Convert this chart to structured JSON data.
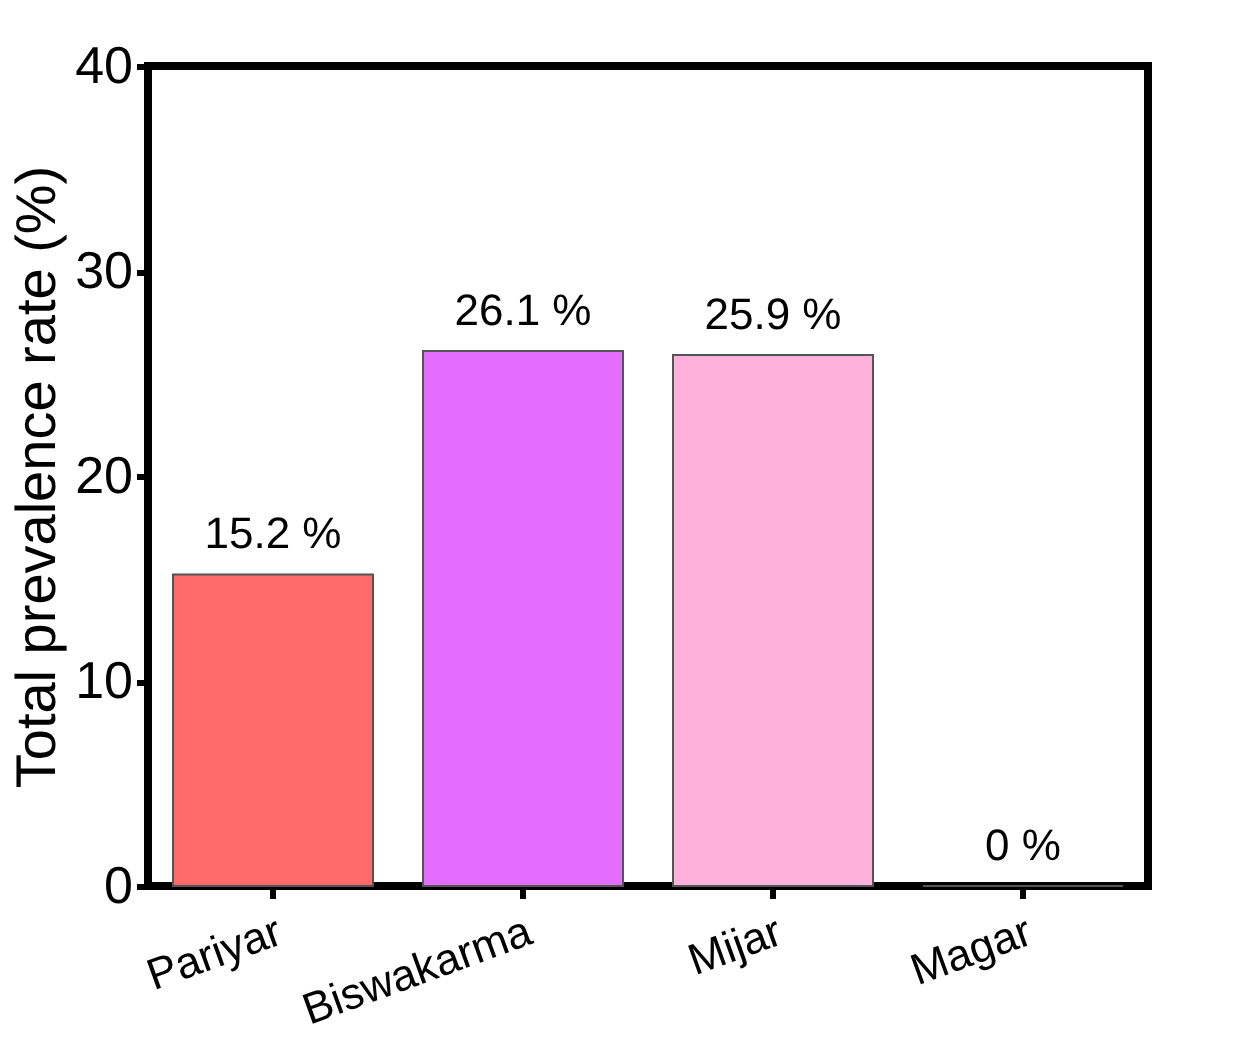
{
  "chart_data": {
    "type": "bar",
    "ylabel": "Total prevalence rate (%)",
    "categories": [
      "Pariyar",
      "Biswakarma",
      "Mijar",
      "Magar"
    ],
    "values": [
      15.2,
      26.1,
      25.9,
      0
    ],
    "colors": [
      "#ff6b6b",
      "#e46cff",
      "#feb1da",
      "#555555"
    ],
    "value_labels": [
      "15.2 %",
      "26.1 %",
      "25.9 %",
      "0 %"
    ],
    "ylim": [
      0,
      40
    ],
    "yticks": [
      0,
      10,
      20,
      30,
      40
    ],
    "grid": false
  }
}
